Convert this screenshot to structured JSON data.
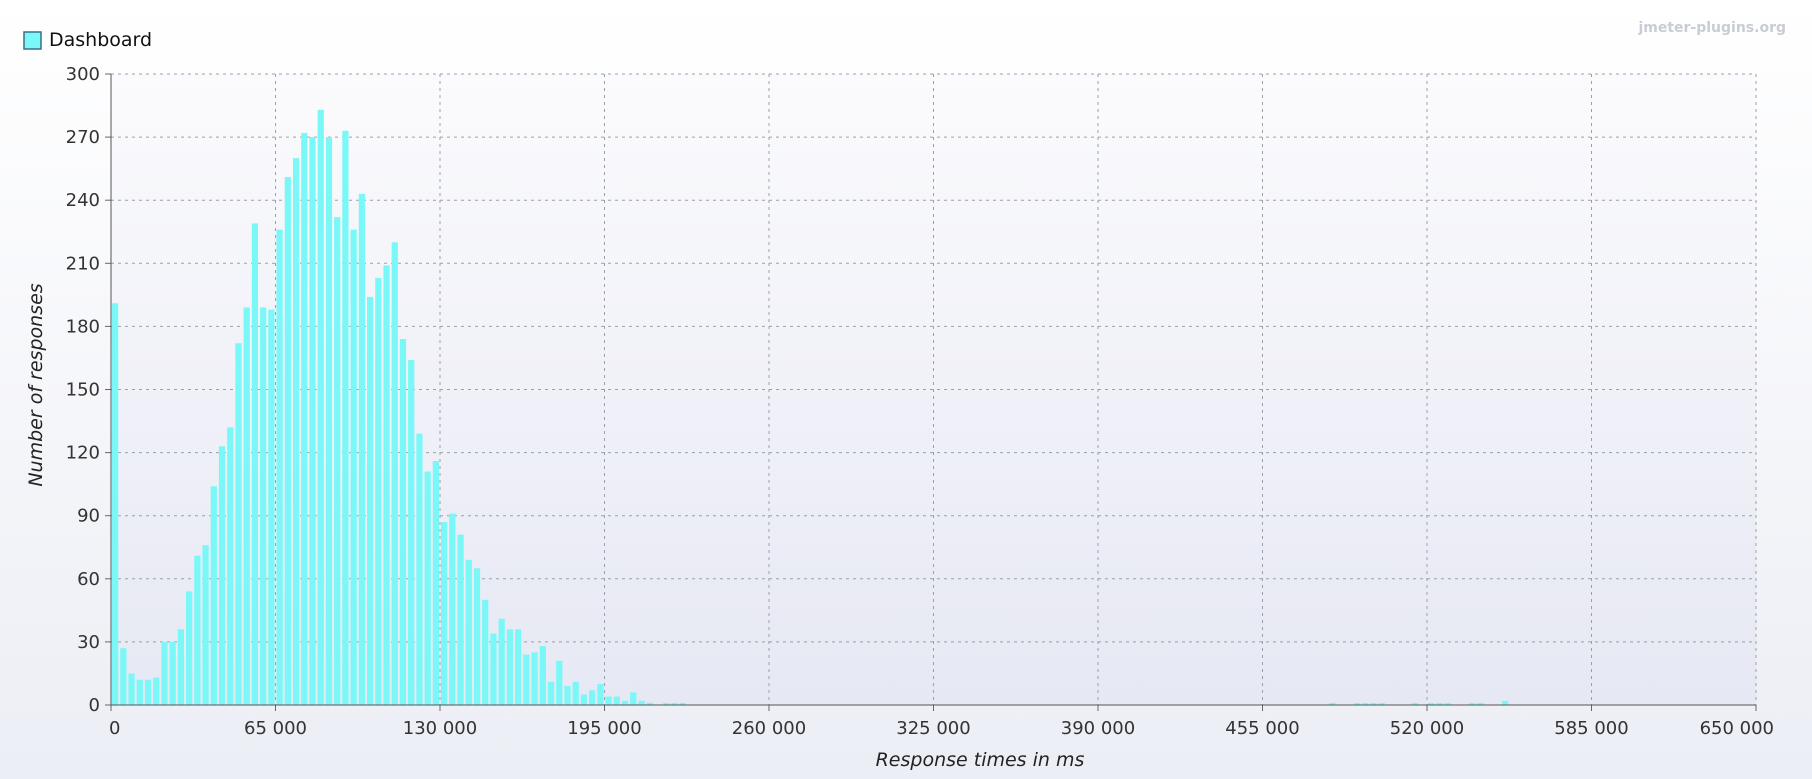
{
  "chart_data": {
    "type": "bar",
    "title": "",
    "watermark": "jmeter-plugins.org",
    "legend": [
      {
        "name": "Dashboard",
        "color": "#7af8f8"
      }
    ],
    "legend_placement": "top-left",
    "xlabel": "Response times in ms",
    "ylabel": "Number of responses",
    "xlim": [
      0,
      650000
    ],
    "ylim": [
      0,
      300
    ],
    "grid": true,
    "bar_width": 3250,
    "x_ticks": [
      "0",
      "65 000",
      "130 000",
      "195 000",
      "260 000",
      "325 000",
      "390 000",
      "455 000",
      "520 000",
      "585 000",
      "650 000"
    ],
    "y_ticks": [
      "0",
      "30",
      "60",
      "90",
      "120",
      "150",
      "180",
      "210",
      "240",
      "270",
      "300"
    ],
    "series": [
      {
        "name": "Dashboard",
        "color": "#7af8f8",
        "points": [
          [
            0,
            191
          ],
          [
            3250,
            27
          ],
          [
            6500,
            15
          ],
          [
            9750,
            12
          ],
          [
            13000,
            12
          ],
          [
            16250,
            13
          ],
          [
            19500,
            30
          ],
          [
            22750,
            30
          ],
          [
            26000,
            36
          ],
          [
            29250,
            54
          ],
          [
            32500,
            71
          ],
          [
            35750,
            76
          ],
          [
            39000,
            104
          ],
          [
            42250,
            123
          ],
          [
            45500,
            132
          ],
          [
            48750,
            172
          ],
          [
            52000,
            189
          ],
          [
            55250,
            229
          ],
          [
            58500,
            189
          ],
          [
            61750,
            188
          ],
          [
            65000,
            226
          ],
          [
            68250,
            251
          ],
          [
            71500,
            260
          ],
          [
            74750,
            272
          ],
          [
            78000,
            270
          ],
          [
            81250,
            283
          ],
          [
            84500,
            270
          ],
          [
            87750,
            232
          ],
          [
            91000,
            273
          ],
          [
            94250,
            226
          ],
          [
            97500,
            243
          ],
          [
            100750,
            194
          ],
          [
            104000,
            203
          ],
          [
            107250,
            209
          ],
          [
            110500,
            220
          ],
          [
            113750,
            174
          ],
          [
            117000,
            164
          ],
          [
            120250,
            129
          ],
          [
            123500,
            111
          ],
          [
            126750,
            116
          ],
          [
            130000,
            87
          ],
          [
            133250,
            91
          ],
          [
            136500,
            81
          ],
          [
            139750,
            69
          ],
          [
            143000,
            65
          ],
          [
            146250,
            50
          ],
          [
            149500,
            34
          ],
          [
            152750,
            41
          ],
          [
            156000,
            36
          ],
          [
            159250,
            36
          ],
          [
            162500,
            24
          ],
          [
            165750,
            25
          ],
          [
            169000,
            28
          ],
          [
            172250,
            11
          ],
          [
            175500,
            21
          ],
          [
            178750,
            9
          ],
          [
            182000,
            11
          ],
          [
            185250,
            5
          ],
          [
            188500,
            7
          ],
          [
            191750,
            10
          ],
          [
            195000,
            4
          ],
          [
            198250,
            4
          ],
          [
            201500,
            2
          ],
          [
            204750,
            6
          ],
          [
            208000,
            2
          ],
          [
            211250,
            1
          ],
          [
            217750,
            1
          ],
          [
            221000,
            1
          ],
          [
            224250,
            1
          ],
          [
            481000,
            1
          ],
          [
            490750,
            1
          ],
          [
            494000,
            1
          ],
          [
            497250,
            1
          ],
          [
            500500,
            1
          ],
          [
            513500,
            1
          ],
          [
            520000,
            1
          ],
          [
            526500,
            1
          ],
          [
            523250,
            1
          ],
          [
            536250,
            1
          ],
          [
            539500,
            1
          ],
          [
            549250,
            2
          ]
        ]
      }
    ]
  }
}
